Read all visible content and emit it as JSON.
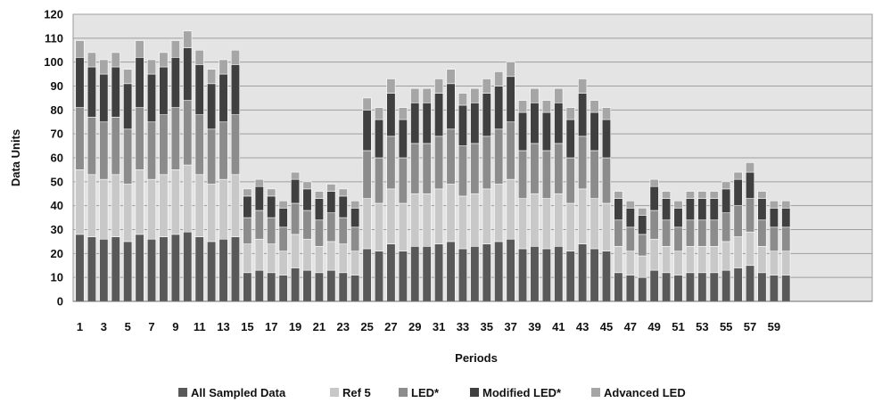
{
  "chart_data": {
    "type": "bar",
    "stacked": true,
    "title": "",
    "xlabel": "Periods",
    "ylabel": "Data Units",
    "ylim": [
      0,
      120
    ],
    "yticks": [
      0,
      10,
      20,
      30,
      40,
      50,
      60,
      70,
      80,
      90,
      100,
      110,
      120
    ],
    "grid": true,
    "legend_position": "bottom",
    "categories": [
      "1",
      "2",
      "3",
      "4",
      "5",
      "6",
      "7",
      "8",
      "9",
      "10",
      "11",
      "12",
      "13",
      "14",
      "15",
      "16",
      "17",
      "18",
      "19",
      "20",
      "21",
      "22",
      "23",
      "24",
      "25",
      "26",
      "27",
      "28",
      "29",
      "30",
      "31",
      "32",
      "33",
      "34",
      "35",
      "36",
      "37",
      "38",
      "39",
      "40",
      "41",
      "42",
      "43",
      "44",
      "45",
      "46",
      "47",
      "48",
      "49",
      "50",
      "51",
      "52",
      "53",
      "54",
      "55",
      "56",
      "57",
      "58",
      "59",
      "60"
    ],
    "visible_tick_labels": [
      "1",
      "3",
      "5",
      "7",
      "9",
      "11",
      "13",
      "15",
      "17",
      "19",
      "21",
      "23",
      "25",
      "27",
      "29",
      "31",
      "33",
      "35",
      "37",
      "39",
      "41",
      "43",
      "45",
      "47",
      "49",
      "51",
      "53",
      "55",
      "57",
      "59"
    ],
    "series": [
      {
        "name": "All Sampled Data",
        "color": "#595959",
        "values": [
          28,
          27,
          26,
          27,
          25,
          28,
          26,
          27,
          28,
          29,
          27,
          25,
          26,
          27,
          12,
          13,
          12,
          11,
          14,
          13,
          12,
          13,
          12,
          11,
          22,
          21,
          24,
          21,
          23,
          23,
          24,
          25,
          22,
          23,
          24,
          25,
          26,
          22,
          23,
          22,
          23,
          21,
          24,
          22,
          21,
          12,
          11,
          10,
          13,
          12,
          11,
          12,
          12,
          12,
          13,
          14,
          15,
          12,
          11,
          11
        ]
      },
      {
        "name": "Ref 5",
        "color": "#c8c8c8",
        "values": [
          27,
          26,
          25,
          26,
          24,
          27,
          25,
          26,
          27,
          28,
          26,
          24,
          25,
          26,
          12,
          13,
          12,
          10,
          14,
          13,
          11,
          12,
          12,
          10,
          21,
          20,
          23,
          20,
          22,
          22,
          23,
          24,
          22,
          22,
          23,
          24,
          25,
          21,
          22,
          21,
          22,
          20,
          23,
          21,
          20,
          11,
          10,
          9,
          13,
          11,
          10,
          11,
          11,
          11,
          12,
          13,
          14,
          11,
          10,
          10
        ]
      },
      {
        "name": "LED*",
        "color": "#8c8c8c",
        "values": [
          26,
          24,
          24,
          24,
          23,
          26,
          24,
          25,
          26,
          27,
          25,
          23,
          24,
          25,
          11,
          12,
          11,
          10,
          13,
          12,
          11,
          12,
          11,
          10,
          20,
          19,
          22,
          19,
          21,
          21,
          22,
          23,
          21,
          21,
          22,
          23,
          24,
          20,
          21,
          20,
          21,
          19,
          22,
          20,
          19,
          11,
          10,
          9,
          12,
          11,
          10,
          11,
          11,
          11,
          12,
          13,
          14,
          11,
          10,
          10
        ]
      },
      {
        "name": "Modified LED*",
        "color": "#404040",
        "values": [
          21,
          21,
          20,
          21,
          19,
          21,
          20,
          20,
          21,
          22,
          21,
          19,
          20,
          21,
          9,
          10,
          9,
          8,
          10,
          9,
          9,
          9,
          9,
          8,
          17,
          16,
          18,
          16,
          17,
          17,
          18,
          19,
          17,
          17,
          18,
          18,
          19,
          16,
          17,
          16,
          17,
          16,
          18,
          16,
          16,
          9,
          8,
          8,
          10,
          9,
          8,
          9,
          9,
          9,
          10,
          11,
          11,
          9,
          8,
          8
        ]
      },
      {
        "name": "Advanced LED",
        "color": "#a6a6a6",
        "values": [
          7,
          6,
          6,
          6,
          6,
          7,
          6,
          6,
          7,
          7,
          6,
          6,
          6,
          6,
          3,
          3,
          3,
          3,
          3,
          3,
          3,
          3,
          3,
          3,
          5,
          5,
          6,
          5,
          6,
          6,
          6,
          6,
          5,
          6,
          6,
          6,
          6,
          5,
          6,
          5,
          6,
          5,
          6,
          5,
          5,
          3,
          3,
          3,
          3,
          3,
          3,
          3,
          3,
          3,
          3,
          3,
          4,
          3,
          3,
          3
        ]
      }
    ]
  }
}
